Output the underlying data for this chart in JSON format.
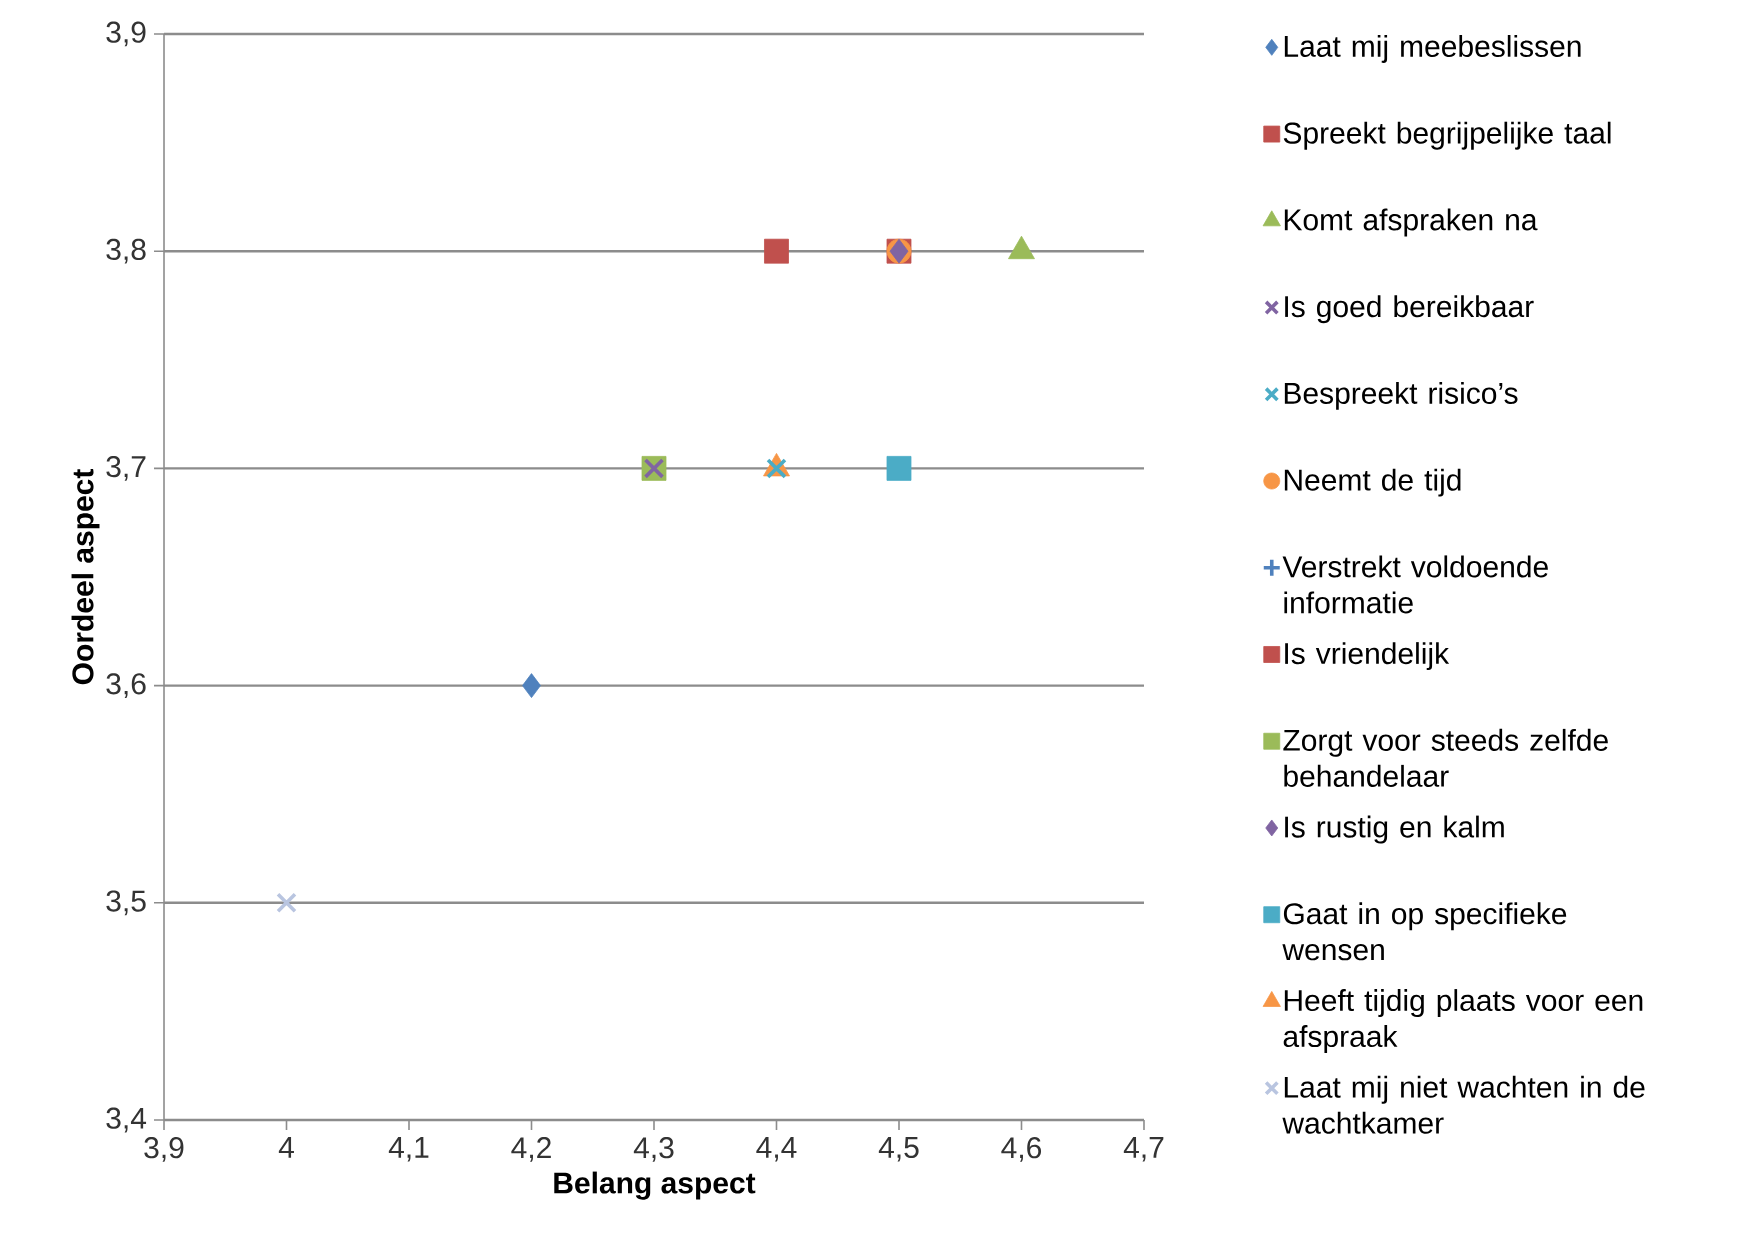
{
  "chart_data": {
    "type": "scatter",
    "xlabel": "Belang aspect",
    "ylabel": "Oordeel aspect",
    "xlim": [
      3.9,
      4.7
    ],
    "ylim": [
      3.4,
      3.9
    ],
    "xticks": [
      {
        "value": 3.9,
        "label": "3,9"
      },
      {
        "value": 4.0,
        "label": "4"
      },
      {
        "value": 4.1,
        "label": "4,1"
      },
      {
        "value": 4.2,
        "label": "4,2"
      },
      {
        "value": 4.3,
        "label": "4,3"
      },
      {
        "value": 4.4,
        "label": "4,4"
      },
      {
        "value": 4.5,
        "label": "4,5"
      },
      {
        "value": 4.6,
        "label": "4,6"
      },
      {
        "value": 4.7,
        "label": "4,7"
      }
    ],
    "yticks": [
      {
        "value": 3.4,
        "label": "3,4"
      },
      {
        "value": 3.5,
        "label": "3,5"
      },
      {
        "value": 3.6,
        "label": "3,6"
      },
      {
        "value": 3.7,
        "label": "3,7"
      },
      {
        "value": 3.8,
        "label": "3,8"
      },
      {
        "value": 3.9,
        "label": "3,9"
      }
    ],
    "grid": "y",
    "legend": "right",
    "series": [
      {
        "name": "Laat mij meebeslissen",
        "color": "#4f81bd",
        "marker": "diamond",
        "x": [
          4.2
        ],
        "values": [
          3.6
        ]
      },
      {
        "name": "Spreekt begrijpelijke taal",
        "color": "#c0504d",
        "marker": "square",
        "x": [
          4.5
        ],
        "values": [
          3.8
        ]
      },
      {
        "name": "Komt afspraken na",
        "color": "#9bbb59",
        "marker": "triangle",
        "x": [
          4.6
        ],
        "values": [
          3.8
        ]
      },
      {
        "name": "Is goed bereikbaar",
        "color": "#8064a2",
        "marker": "cross",
        "x": [
          4.3
        ],
        "values": [
          3.7
        ]
      },
      {
        "name": "Bespreekt risico’s",
        "color": "#4bacc6",
        "marker": "cross",
        "x": [
          4.4
        ],
        "values": [
          3.7
        ]
      },
      {
        "name": "Neemt de tijd",
        "color": "#f79646",
        "marker": "circle",
        "x": [
          4.5
        ],
        "values": [
          3.8
        ]
      },
      {
        "name": "Verstrekt voldoende informatie",
        "color": "#4f81bd",
        "marker": "plus",
        "x": [
          null
        ],
        "values": [
          null
        ]
      },
      {
        "name": "Is vriendelijk",
        "color": "#c0504d",
        "marker": "square",
        "x": [
          4.4
        ],
        "values": [
          3.8
        ]
      },
      {
        "name": "Zorgt voor steeds zelfde behandelaar",
        "color": "#9bbb59",
        "marker": "square",
        "x": [
          4.3
        ],
        "values": [
          3.7
        ]
      },
      {
        "name": "Is rustig en kalm",
        "color": "#8064a2",
        "marker": "diamond",
        "x": [
          4.5
        ],
        "values": [
          3.8
        ]
      },
      {
        "name": "Gaat in op specifieke wensen",
        "color": "#4bacc6",
        "marker": "square",
        "x": [
          4.5
        ],
        "values": [
          3.7
        ]
      },
      {
        "name": "Heeft tijdig plaats voor een afspraak",
        "color": "#f79646",
        "marker": "triangle",
        "x": [
          4.4
        ],
        "values": [
          3.7
        ]
      },
      {
        "name": "Laat mij niet wachten in de wachtkamer",
        "color": "#b9c5e0",
        "marker": "cross",
        "x": [
          4.0
        ],
        "values": [
          3.5
        ]
      }
    ]
  }
}
